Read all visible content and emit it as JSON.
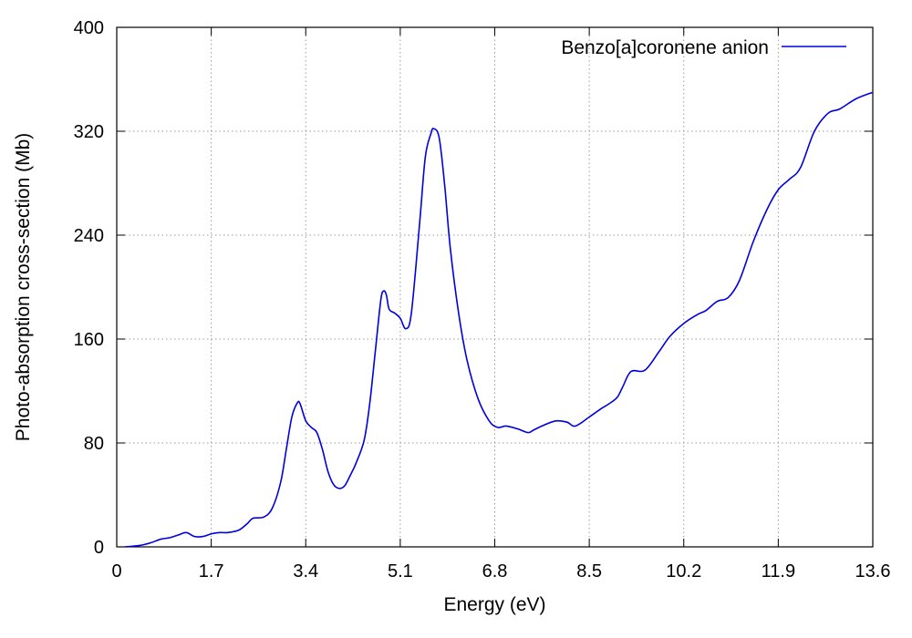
{
  "chart_data": {
    "type": "line",
    "xlabel": "Energy (eV)",
    "ylabel": "Photo-absorption cross-section (Mb)",
    "xlim": [
      0,
      13.6
    ],
    "ylim": [
      0,
      400
    ],
    "xticks": [
      "0",
      "1.7",
      "3.4",
      "5.1",
      "6.8",
      "8.5",
      "10.2",
      "11.9",
      "13.6"
    ],
    "xtick_values": [
      0,
      1.7,
      3.4,
      5.1,
      6.8,
      8.5,
      10.2,
      11.9,
      13.6
    ],
    "yticks": [
      "0",
      "80",
      "160",
      "240",
      "320",
      "400"
    ],
    "ytick_values": [
      0,
      80,
      160,
      240,
      320,
      400
    ],
    "grid": true,
    "legend_position": "top-right",
    "series_color": "#0000e0",
    "series": [
      {
        "name": "Benzo[a]coronene anion",
        "x": [
          0.15,
          0.4,
          0.6,
          0.8,
          0.95,
          1.1,
          1.25,
          1.4,
          1.55,
          1.7,
          1.85,
          2.0,
          2.2,
          2.35,
          2.45,
          2.65,
          2.8,
          2.95,
          3.05,
          3.15,
          3.25,
          3.3,
          3.4,
          3.5,
          3.6,
          3.7,
          3.8,
          3.9,
          4.0,
          4.1,
          4.2,
          4.3,
          4.45,
          4.55,
          4.65,
          4.75,
          4.8,
          4.85,
          4.9,
          5.0,
          5.1,
          5.2,
          5.3,
          5.45,
          5.55,
          5.65,
          5.7,
          5.8,
          5.9,
          6.0,
          6.15,
          6.3,
          6.5,
          6.7,
          6.85,
          7.0,
          7.2,
          7.4,
          7.5,
          7.7,
          7.9,
          8.1,
          8.25,
          8.5,
          8.7,
          8.85,
          9.0,
          9.1,
          9.25,
          9.5,
          9.75,
          9.95,
          10.2,
          10.45,
          10.6,
          10.8,
          11.0,
          11.2,
          11.45,
          11.7,
          11.9,
          12.1,
          12.3,
          12.55,
          12.8,
          13.0,
          13.3,
          13.6
        ],
        "y": [
          0,
          1,
          3,
          6,
          7,
          9,
          11,
          8,
          8,
          10,
          11,
          11,
          13,
          18,
          22,
          23,
          30,
          50,
          75,
          100,
          111,
          110,
          97,
          92,
          88,
          75,
          58,
          48,
          45,
          47,
          55,
          64,
          82,
          110,
          150,
          190,
          197,
          194,
          183,
          180,
          176,
          168,
          180,
          250,
          300,
          318,
          322,
          315,
          278,
          230,
          180,
          144,
          114,
          97,
          92,
          93,
          91,
          88,
          90,
          94,
          97,
          96,
          93,
          100,
          106,
          110,
          115,
          123,
          135,
          136,
          150,
          162,
          172,
          179,
          182,
          189,
          192,
          205,
          235,
          260,
          275,
          283,
          292,
          320,
          334,
          337,
          345,
          350
        ]
      }
    ]
  }
}
